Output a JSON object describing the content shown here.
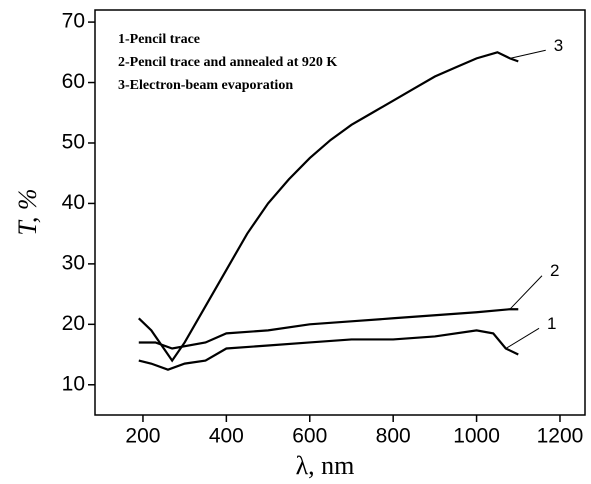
{
  "chart_data": {
    "type": "line",
    "xlabel": "λ, nm",
    "ylabel": "T, %",
    "xlim": [
      85,
      1260
    ],
    "xticks": [
      200,
      400,
      600,
      800,
      1000,
      1200
    ],
    "ylim": [
      5,
      72
    ],
    "yticks": [
      10,
      20,
      30,
      40,
      50,
      60,
      70
    ],
    "series": [
      {
        "name": "1-Pencil trace",
        "color": "#000000",
        "x": [
          190,
          220,
          260,
          300,
          350,
          400,
          500,
          600,
          700,
          800,
          900,
          1000,
          1040,
          1070,
          1100
        ],
        "values": [
          14,
          13.5,
          12.5,
          13.5,
          14,
          16,
          16.5,
          17,
          17.5,
          17.5,
          18,
          19,
          18.5,
          16,
          15
        ]
      },
      {
        "name": "2-Pencil trace and annealed at 920 K",
        "color": "#000000",
        "x": [
          190,
          230,
          270,
          350,
          400,
          500,
          600,
          700,
          800,
          900,
          1000,
          1080,
          1100
        ],
        "values": [
          17,
          17,
          16,
          17,
          18.5,
          19,
          20,
          20.5,
          21,
          21.5,
          22,
          22.5,
          22.5
        ]
      },
      {
        "name": "3-Electron-beam evaporation",
        "color": "#000000",
        "x": [
          190,
          220,
          250,
          270,
          300,
          350,
          400,
          450,
          500,
          550,
          600,
          650,
          700,
          750,
          800,
          850,
          900,
          950,
          1000,
          1050,
          1080,
          1100
        ],
        "values": [
          21,
          19,
          16,
          14,
          17,
          23,
          29,
          35,
          40,
          44,
          47.5,
          50.5,
          53,
          55,
          57,
          59,
          61,
          62.5,
          64,
          65,
          64,
          63.5
        ]
      }
    ],
    "annotations": [
      {
        "text": "1",
        "x": 1169,
        "y": 20
      },
      {
        "text": "2",
        "x": 1176,
        "y": 28.7
      },
      {
        "text": "3",
        "x": 1185,
        "y": 66
      }
    ]
  }
}
